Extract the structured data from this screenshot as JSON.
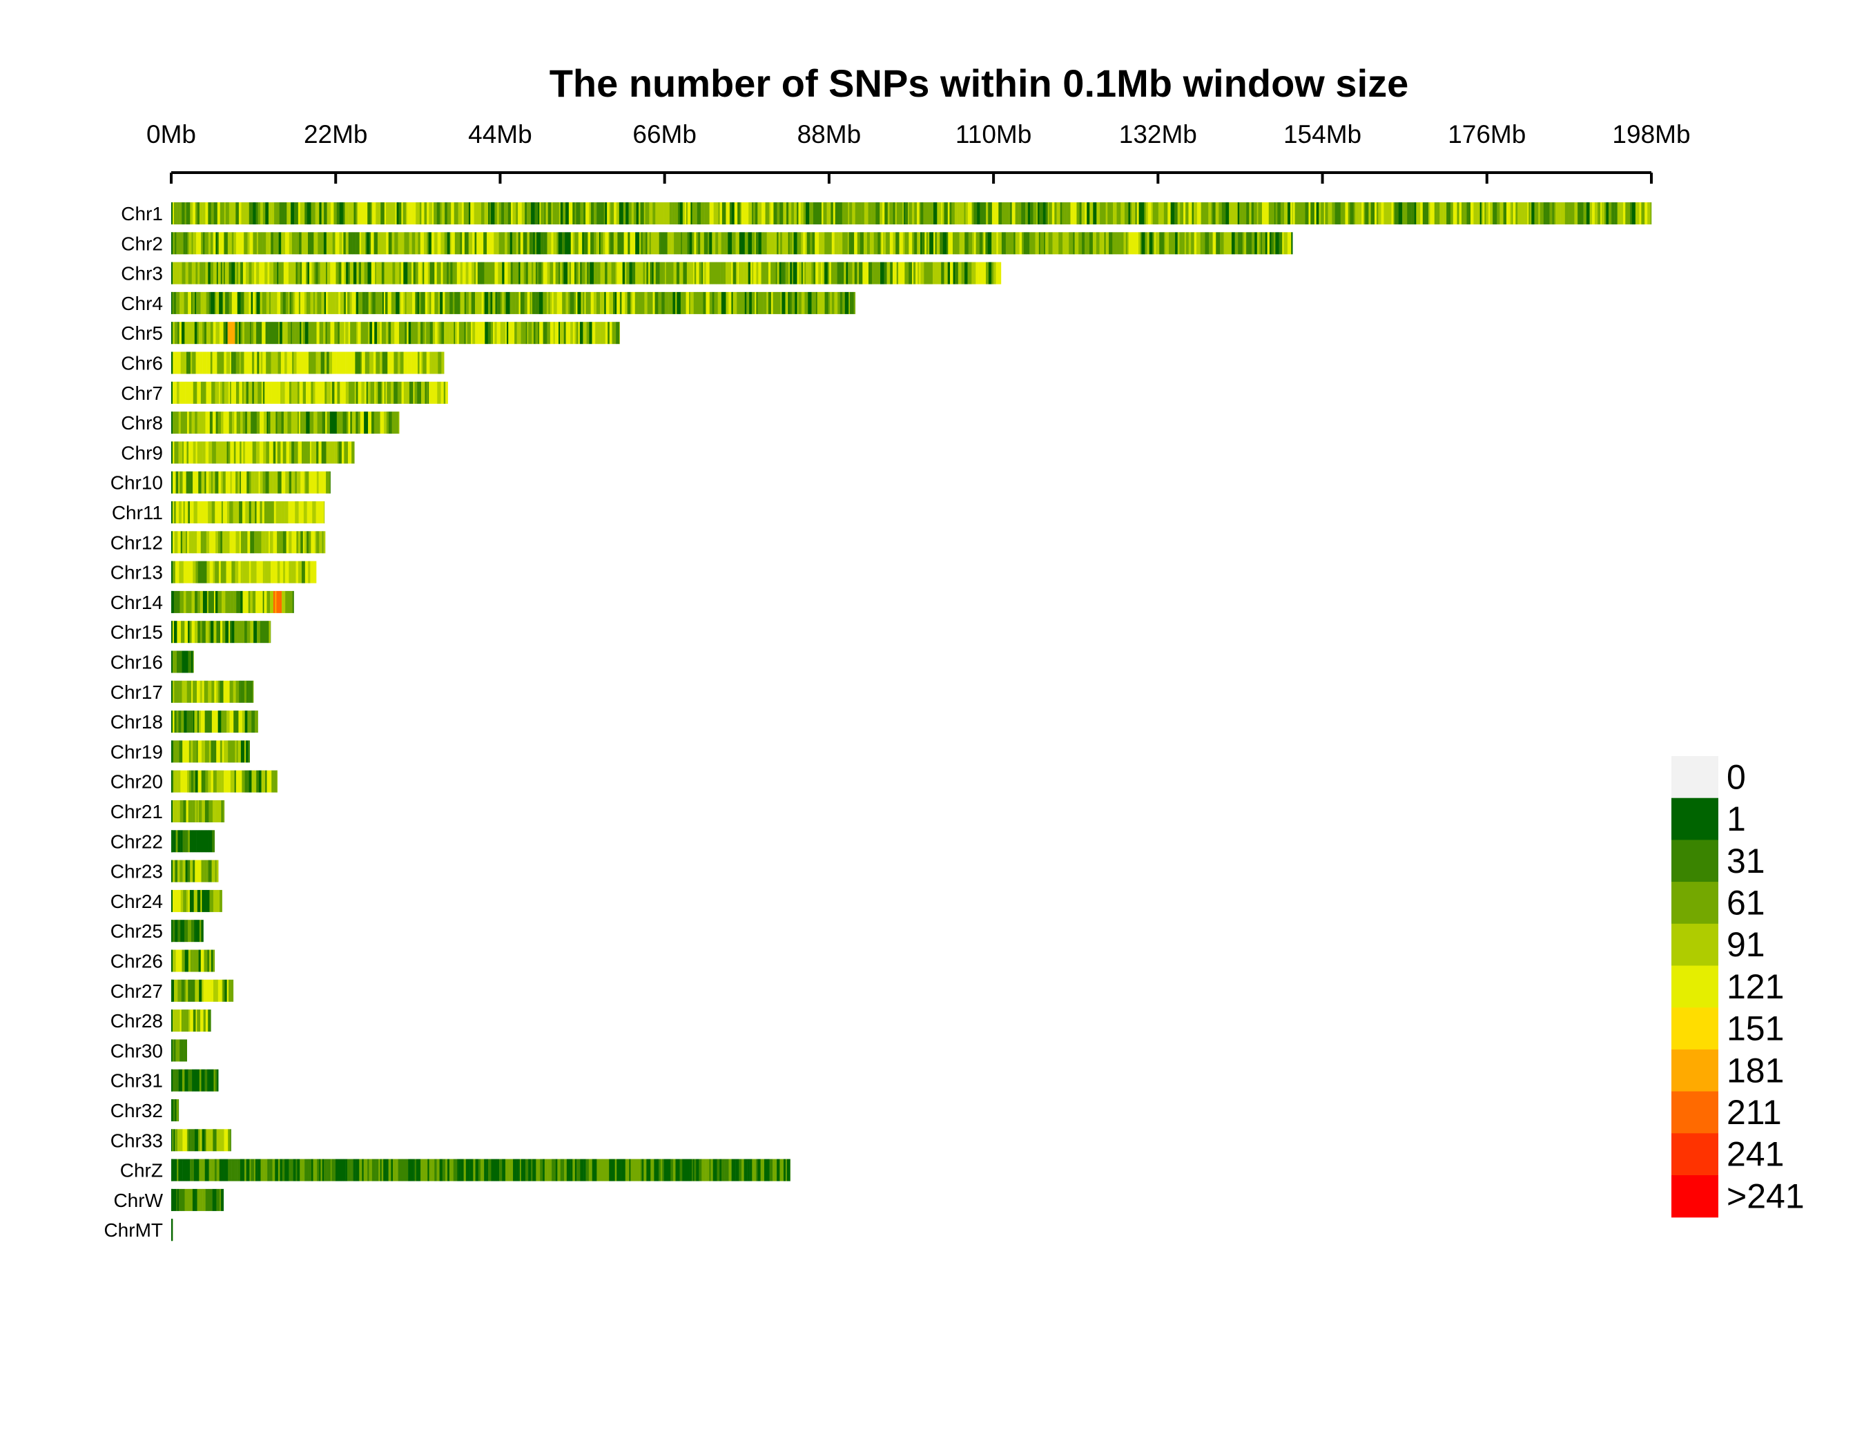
{
  "chart_data": {
    "type": "heatmap",
    "title": "The number of SNPs within 0.1Mb window size",
    "x_axis": {
      "unit": "Mb",
      "min": 0,
      "max": 198,
      "ticks": [
        0,
        22,
        44,
        66,
        88,
        110,
        132,
        154,
        176,
        198
      ],
      "tick_labels": [
        "0Mb",
        "22Mb",
        "44Mb",
        "66Mb",
        "88Mb",
        "110Mb",
        "132Mb",
        "154Mb",
        "176Mb",
        "198Mb"
      ]
    },
    "window_size_mb": 0.1,
    "chromosomes": [
      {
        "name": "Chr1",
        "length_mb": 198.0,
        "mode": "mixed"
      },
      {
        "name": "Chr2",
        "length_mb": 150.0,
        "mode": "mixed"
      },
      {
        "name": "Chr3",
        "length_mb": 111.0,
        "mode": "mixed"
      },
      {
        "name": "Chr4",
        "length_mb": 91.5,
        "mode": "mixed"
      },
      {
        "name": "Chr5",
        "length_mb": 60.0,
        "mode": "mixed",
        "hotspot_mb": 8.0
      },
      {
        "name": "Chr6",
        "length_mb": 36.5,
        "mode": "high"
      },
      {
        "name": "Chr7",
        "length_mb": 37.0,
        "mode": "high"
      },
      {
        "name": "Chr8",
        "length_mb": 30.5,
        "mode": "mixed"
      },
      {
        "name": "Chr9",
        "length_mb": 24.5,
        "mode": "high"
      },
      {
        "name": "Chr10",
        "length_mb": 21.3,
        "mode": "high"
      },
      {
        "name": "Chr11",
        "length_mb": 20.5,
        "mode": "high"
      },
      {
        "name": "Chr12",
        "length_mb": 20.6,
        "mode": "high"
      },
      {
        "name": "Chr13",
        "length_mb": 19.4,
        "mode": "high"
      },
      {
        "name": "Chr14",
        "length_mb": 16.4,
        "mode": "mixed",
        "hotspot_mb": 14.0
      },
      {
        "name": "Chr15",
        "length_mb": 13.3,
        "mode": "mixed"
      },
      {
        "name": "Chr16",
        "length_mb": 3.0,
        "mode": "low"
      },
      {
        "name": "Chr17",
        "length_mb": 11.0,
        "mode": "mixed"
      },
      {
        "name": "Chr18",
        "length_mb": 11.6,
        "mode": "mixed"
      },
      {
        "name": "Chr19",
        "length_mb": 10.5,
        "mode": "mixed"
      },
      {
        "name": "Chr20",
        "length_mb": 14.2,
        "mode": "mixed"
      },
      {
        "name": "Chr21",
        "length_mb": 7.1,
        "mode": "mixed"
      },
      {
        "name": "Chr22",
        "length_mb": 5.8,
        "mode": "low"
      },
      {
        "name": "Chr23",
        "length_mb": 6.3,
        "mode": "mixed"
      },
      {
        "name": "Chr24",
        "length_mb": 6.8,
        "mode": "mixed"
      },
      {
        "name": "Chr25",
        "length_mb": 4.3,
        "mode": "low"
      },
      {
        "name": "Chr26",
        "length_mb": 5.8,
        "mode": "mixed"
      },
      {
        "name": "Chr27",
        "length_mb": 8.3,
        "mode": "mixed"
      },
      {
        "name": "Chr28",
        "length_mb": 5.3,
        "mode": "mixed"
      },
      {
        "name": "Chr30",
        "length_mb": 2.1,
        "mode": "low"
      },
      {
        "name": "Chr31",
        "length_mb": 6.3,
        "mode": "low"
      },
      {
        "name": "Chr32",
        "length_mb": 1.0,
        "mode": "low"
      },
      {
        "name": "Chr33",
        "length_mb": 8.0,
        "mode": "mixed"
      },
      {
        "name": "ChrZ",
        "length_mb": 82.8,
        "mode": "low"
      },
      {
        "name": "ChrW",
        "length_mb": 7.0,
        "mode": "low"
      },
      {
        "name": "ChrMT",
        "length_mb": 0.2,
        "mode": "low"
      }
    ],
    "legend": {
      "position": "bottom-right",
      "bins": [
        {
          "label": "0",
          "color": "#F2F2F2"
        },
        {
          "label": "1",
          "color": "#006400"
        },
        {
          "label": "31",
          "color": "#3A8400"
        },
        {
          "label": "61",
          "color": "#74A800"
        },
        {
          "label": "91",
          "color": "#AFCC00"
        },
        {
          "label": "121",
          "color": "#E5EE00"
        },
        {
          "label": "151",
          "color": "#FFDD00"
        },
        {
          "label": "181",
          "color": "#FFAA00"
        },
        {
          "label": "211",
          "color": "#FF6A00"
        },
        {
          "label": "241",
          "color": "#FF3300"
        },
        {
          "label": ">241",
          "color": "#FF0000"
        }
      ]
    }
  }
}
